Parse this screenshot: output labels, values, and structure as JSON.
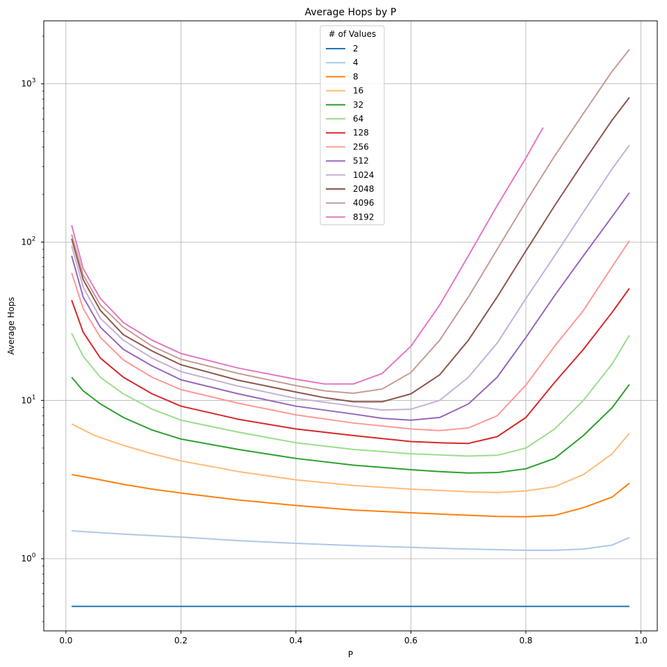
{
  "chart_data": {
    "type": "line",
    "title": "Average Hops by P",
    "xlabel": "P",
    "ylabel": "Average Hops",
    "xlim": [
      -0.0385,
      1.0285
    ],
    "ylim": [
      0.35,
      2500
    ],
    "yscale": "log",
    "grid": true,
    "legend_title": "# of Values",
    "legend_position": "top-center",
    "x_ticks": [
      "0.0",
      "0.2",
      "0.4",
      "0.6",
      "0.8",
      "1.0"
    ],
    "x_tick_values": [
      0,
      0.2,
      0.4,
      0.6,
      0.8,
      1.0
    ],
    "y_tick_values": [
      1,
      10,
      100,
      1000
    ],
    "y_ticks": [
      {
        "base": "10",
        "exp": "0"
      },
      {
        "base": "10",
        "exp": "1"
      },
      {
        "base": "10",
        "exp": "2"
      },
      {
        "base": "10",
        "exp": "3"
      }
    ],
    "series": [
      {
        "name": "2",
        "color": "#1f77b4",
        "points": [
          [
            0.01,
            0.5
          ],
          [
            0.98,
            0.5
          ]
        ]
      },
      {
        "name": "4",
        "color": "#aec7e8",
        "points": [
          [
            0.01,
            1.5
          ],
          [
            0.1,
            1.43
          ],
          [
            0.2,
            1.37
          ],
          [
            0.3,
            1.3
          ],
          [
            0.4,
            1.25
          ],
          [
            0.5,
            1.21
          ],
          [
            0.6,
            1.18
          ],
          [
            0.7,
            1.15
          ],
          [
            0.8,
            1.13
          ],
          [
            0.85,
            1.13
          ],
          [
            0.9,
            1.15
          ],
          [
            0.95,
            1.22
          ],
          [
            0.98,
            1.36
          ]
        ]
      },
      {
        "name": "8",
        "color": "#ff7f0e",
        "points": [
          [
            0.01,
            3.4
          ],
          [
            0.05,
            3.2
          ],
          [
            0.1,
            2.95
          ],
          [
            0.15,
            2.75
          ],
          [
            0.2,
            2.6
          ],
          [
            0.3,
            2.35
          ],
          [
            0.4,
            2.17
          ],
          [
            0.5,
            2.03
          ],
          [
            0.6,
            1.95
          ],
          [
            0.7,
            1.88
          ],
          [
            0.75,
            1.85
          ],
          [
            0.8,
            1.84
          ],
          [
            0.85,
            1.88
          ],
          [
            0.9,
            2.1
          ],
          [
            0.95,
            2.45
          ],
          [
            0.98,
            3.0
          ]
        ]
      },
      {
        "name": "16",
        "color": "#ffbb78",
        "points": [
          [
            0.01,
            7.1
          ],
          [
            0.05,
            6.0
          ],
          [
            0.1,
            5.2
          ],
          [
            0.15,
            4.6
          ],
          [
            0.2,
            4.15
          ],
          [
            0.3,
            3.55
          ],
          [
            0.4,
            3.15
          ],
          [
            0.5,
            2.9
          ],
          [
            0.6,
            2.75
          ],
          [
            0.7,
            2.65
          ],
          [
            0.75,
            2.62
          ],
          [
            0.8,
            2.68
          ],
          [
            0.85,
            2.85
          ],
          [
            0.9,
            3.4
          ],
          [
            0.95,
            4.6
          ],
          [
            0.98,
            6.2
          ]
        ]
      },
      {
        "name": "32",
        "color": "#2ca02c",
        "points": [
          [
            0.01,
            14
          ],
          [
            0.03,
            11.5
          ],
          [
            0.06,
            9.5
          ],
          [
            0.1,
            7.8
          ],
          [
            0.15,
            6.5
          ],
          [
            0.2,
            5.7
          ],
          [
            0.3,
            4.9
          ],
          [
            0.4,
            4.3
          ],
          [
            0.5,
            3.9
          ],
          [
            0.6,
            3.65
          ],
          [
            0.65,
            3.55
          ],
          [
            0.7,
            3.48
          ],
          [
            0.75,
            3.5
          ],
          [
            0.8,
            3.7
          ],
          [
            0.85,
            4.3
          ],
          [
            0.9,
            6.0
          ],
          [
            0.95,
            9.0
          ],
          [
            0.98,
            12.6
          ]
        ]
      },
      {
        "name": "64",
        "color": "#98df8a",
        "points": [
          [
            0.01,
            26.5
          ],
          [
            0.03,
            19
          ],
          [
            0.06,
            14
          ],
          [
            0.1,
            11
          ],
          [
            0.15,
            8.8
          ],
          [
            0.2,
            7.5
          ],
          [
            0.3,
            6.3
          ],
          [
            0.4,
            5.4
          ],
          [
            0.5,
            4.9
          ],
          [
            0.6,
            4.6
          ],
          [
            0.7,
            4.45
          ],
          [
            0.75,
            4.5
          ],
          [
            0.8,
            5.0
          ],
          [
            0.85,
            6.6
          ],
          [
            0.9,
            10
          ],
          [
            0.95,
            17
          ],
          [
            0.98,
            25.8
          ]
        ]
      },
      {
        "name": "128",
        "color": "#d62728",
        "points": [
          [
            0.01,
            43
          ],
          [
            0.03,
            27
          ],
          [
            0.06,
            18.5
          ],
          [
            0.1,
            14
          ],
          [
            0.15,
            11
          ],
          [
            0.2,
            9.2
          ],
          [
            0.3,
            7.6
          ],
          [
            0.4,
            6.6
          ],
          [
            0.5,
            6.0
          ],
          [
            0.6,
            5.5
          ],
          [
            0.65,
            5.4
          ],
          [
            0.7,
            5.35
          ],
          [
            0.75,
            5.9
          ],
          [
            0.8,
            7.8
          ],
          [
            0.85,
            13
          ],
          [
            0.9,
            21
          ],
          [
            0.95,
            36
          ],
          [
            0.98,
            51
          ]
        ]
      },
      {
        "name": "256",
        "color": "#ff9896",
        "points": [
          [
            0.01,
            64
          ],
          [
            0.03,
            38
          ],
          [
            0.06,
            25
          ],
          [
            0.1,
            18
          ],
          [
            0.15,
            14
          ],
          [
            0.2,
            11.7
          ],
          [
            0.3,
            9.6
          ],
          [
            0.4,
            8.1
          ],
          [
            0.5,
            7.2
          ],
          [
            0.6,
            6.6
          ],
          [
            0.65,
            6.45
          ],
          [
            0.7,
            6.7
          ],
          [
            0.75,
            8.0
          ],
          [
            0.8,
            12.5
          ],
          [
            0.85,
            22
          ],
          [
            0.9,
            37
          ],
          [
            0.95,
            70
          ],
          [
            0.98,
            102
          ]
        ]
      },
      {
        "name": "512",
        "color": "#9467bd",
        "points": [
          [
            0.01,
            82
          ],
          [
            0.03,
            45
          ],
          [
            0.06,
            29
          ],
          [
            0.1,
            21
          ],
          [
            0.15,
            16.5
          ],
          [
            0.2,
            13.5
          ],
          [
            0.3,
            11
          ],
          [
            0.4,
            9.2
          ],
          [
            0.5,
            8.2
          ],
          [
            0.55,
            7.7
          ],
          [
            0.6,
            7.5
          ],
          [
            0.65,
            7.8
          ],
          [
            0.7,
            9.5
          ],
          [
            0.75,
            14
          ],
          [
            0.8,
            25
          ],
          [
            0.85,
            46
          ],
          [
            0.9,
            82
          ],
          [
            0.95,
            145
          ],
          [
            0.98,
            205
          ]
        ]
      },
      {
        "name": "1024",
        "color": "#c5b0d5",
        "points": [
          [
            0.01,
            95
          ],
          [
            0.03,
            52
          ],
          [
            0.06,
            33
          ],
          [
            0.1,
            24
          ],
          [
            0.15,
            18.5
          ],
          [
            0.2,
            15.2
          ],
          [
            0.3,
            12.3
          ],
          [
            0.4,
            10.3
          ],
          [
            0.5,
            9.2
          ],
          [
            0.55,
            8.7
          ],
          [
            0.6,
            8.8
          ],
          [
            0.65,
            10
          ],
          [
            0.7,
            14
          ],
          [
            0.75,
            23
          ],
          [
            0.8,
            44
          ],
          [
            0.85,
            82
          ],
          [
            0.9,
            155
          ],
          [
            0.95,
            290
          ],
          [
            0.98,
            410
          ]
        ]
      },
      {
        "name": "2048",
        "color": "#8c564b",
        "points": [
          [
            0.01,
            105
          ],
          [
            0.03,
            58
          ],
          [
            0.06,
            37
          ],
          [
            0.1,
            26
          ],
          [
            0.15,
            20.5
          ],
          [
            0.2,
            16.8
          ],
          [
            0.3,
            13.4
          ],
          [
            0.4,
            11.3
          ],
          [
            0.45,
            10.4
          ],
          [
            0.5,
            9.8
          ],
          [
            0.55,
            9.8
          ],
          [
            0.6,
            11
          ],
          [
            0.65,
            14.5
          ],
          [
            0.7,
            24
          ],
          [
            0.75,
            45
          ],
          [
            0.8,
            88
          ],
          [
            0.85,
            170
          ],
          [
            0.9,
            320
          ],
          [
            0.95,
            590
          ],
          [
            0.98,
            820
          ]
        ]
      },
      {
        "name": "4096",
        "color": "#c49c94",
        "points": [
          [
            0.01,
            112
          ],
          [
            0.03,
            62
          ],
          [
            0.06,
            40
          ],
          [
            0.1,
            29
          ],
          [
            0.15,
            22
          ],
          [
            0.2,
            18.2
          ],
          [
            0.3,
            14.8
          ],
          [
            0.4,
            12.4
          ],
          [
            0.45,
            11.5
          ],
          [
            0.5,
            11.1
          ],
          [
            0.55,
            11.8
          ],
          [
            0.6,
            15
          ],
          [
            0.65,
            24
          ],
          [
            0.7,
            45
          ],
          [
            0.75,
            90
          ],
          [
            0.8,
            180
          ],
          [
            0.85,
            350
          ],
          [
            0.9,
            650
          ],
          [
            0.95,
            1200
          ],
          [
            0.98,
            1650
          ]
        ]
      },
      {
        "name": "8192",
        "color": "#e377c2",
        "points": [
          [
            0.01,
            128
          ],
          [
            0.03,
            68
          ],
          [
            0.06,
            44
          ],
          [
            0.1,
            31
          ],
          [
            0.15,
            24
          ],
          [
            0.2,
            19.8
          ],
          [
            0.3,
            16
          ],
          [
            0.4,
            13.6
          ],
          [
            0.45,
            12.7
          ],
          [
            0.5,
            12.7
          ],
          [
            0.55,
            14.8
          ],
          [
            0.6,
            22
          ],
          [
            0.65,
            40
          ],
          [
            0.7,
            82
          ],
          [
            0.75,
            170
          ],
          [
            0.8,
            340
          ],
          [
            0.83,
            530
          ]
        ]
      }
    ]
  }
}
